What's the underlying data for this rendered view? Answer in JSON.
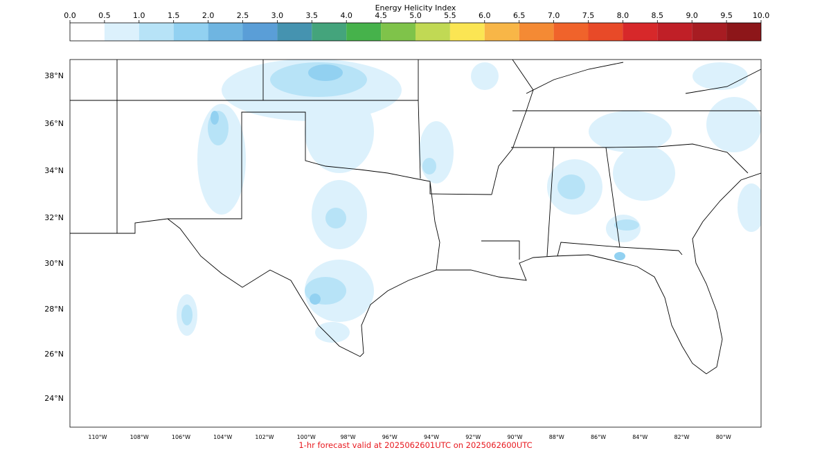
{
  "colorbar": {
    "title": "Energy Helicity Index",
    "ticks": [
      {
        "value": 0,
        "label": "0.0"
      },
      0.5,
      {
        "value": 1,
        "label": "1.0"
      },
      1.5,
      {
        "value": 2,
        "label": "2.0"
      },
      2.5,
      {
        "value": 3,
        "label": "3.0"
      },
      3.5,
      {
        "value": 4,
        "label": "4.0"
      },
      4.5,
      {
        "value": 5,
        "label": "5.0"
      },
      5.5,
      {
        "value": 6,
        "label": "6.0"
      },
      6.5,
      {
        "value": 7,
        "label": "7.0"
      },
      7.5,
      {
        "value": 8,
        "label": "8.0"
      },
      8.5,
      {
        "value": 9,
        "label": "9.0"
      },
      9.5,
      {
        "value": 10,
        "label": "10.0"
      }
    ],
    "colors": [
      "#ffffff",
      "#dcf1fc",
      "#b7e3f7",
      "#92d1f1",
      "#6fb5e1",
      "#5a9ed7",
      "#4593b0",
      "#44a47c",
      "#46b24b",
      "#7fc34a",
      "#c1d954",
      "#fbe553",
      "#f8b647",
      "#f48a34",
      "#f0632b",
      "#e84a28",
      "#d7282a",
      "#c01f27",
      "#a71c22",
      "#8d1619"
    ]
  },
  "map": {
    "lat_labels": [
      "38°N",
      "36°N",
      "34°N",
      "32°N",
      "30°N",
      "28°N",
      "26°N",
      "24°N"
    ],
    "lon_labels": [
      "110°W",
      "108°W",
      "106°W",
      "104°W",
      "102°W",
      "100°W",
      "98°W",
      "96°W",
      "94°W",
      "92°W",
      "90°W",
      "88°W",
      "86°W",
      "84°W",
      "82°W",
      "80°W"
    ]
  },
  "footer": "1-hr forecast valid at 2025062601UTC on 2025062600UTC"
}
